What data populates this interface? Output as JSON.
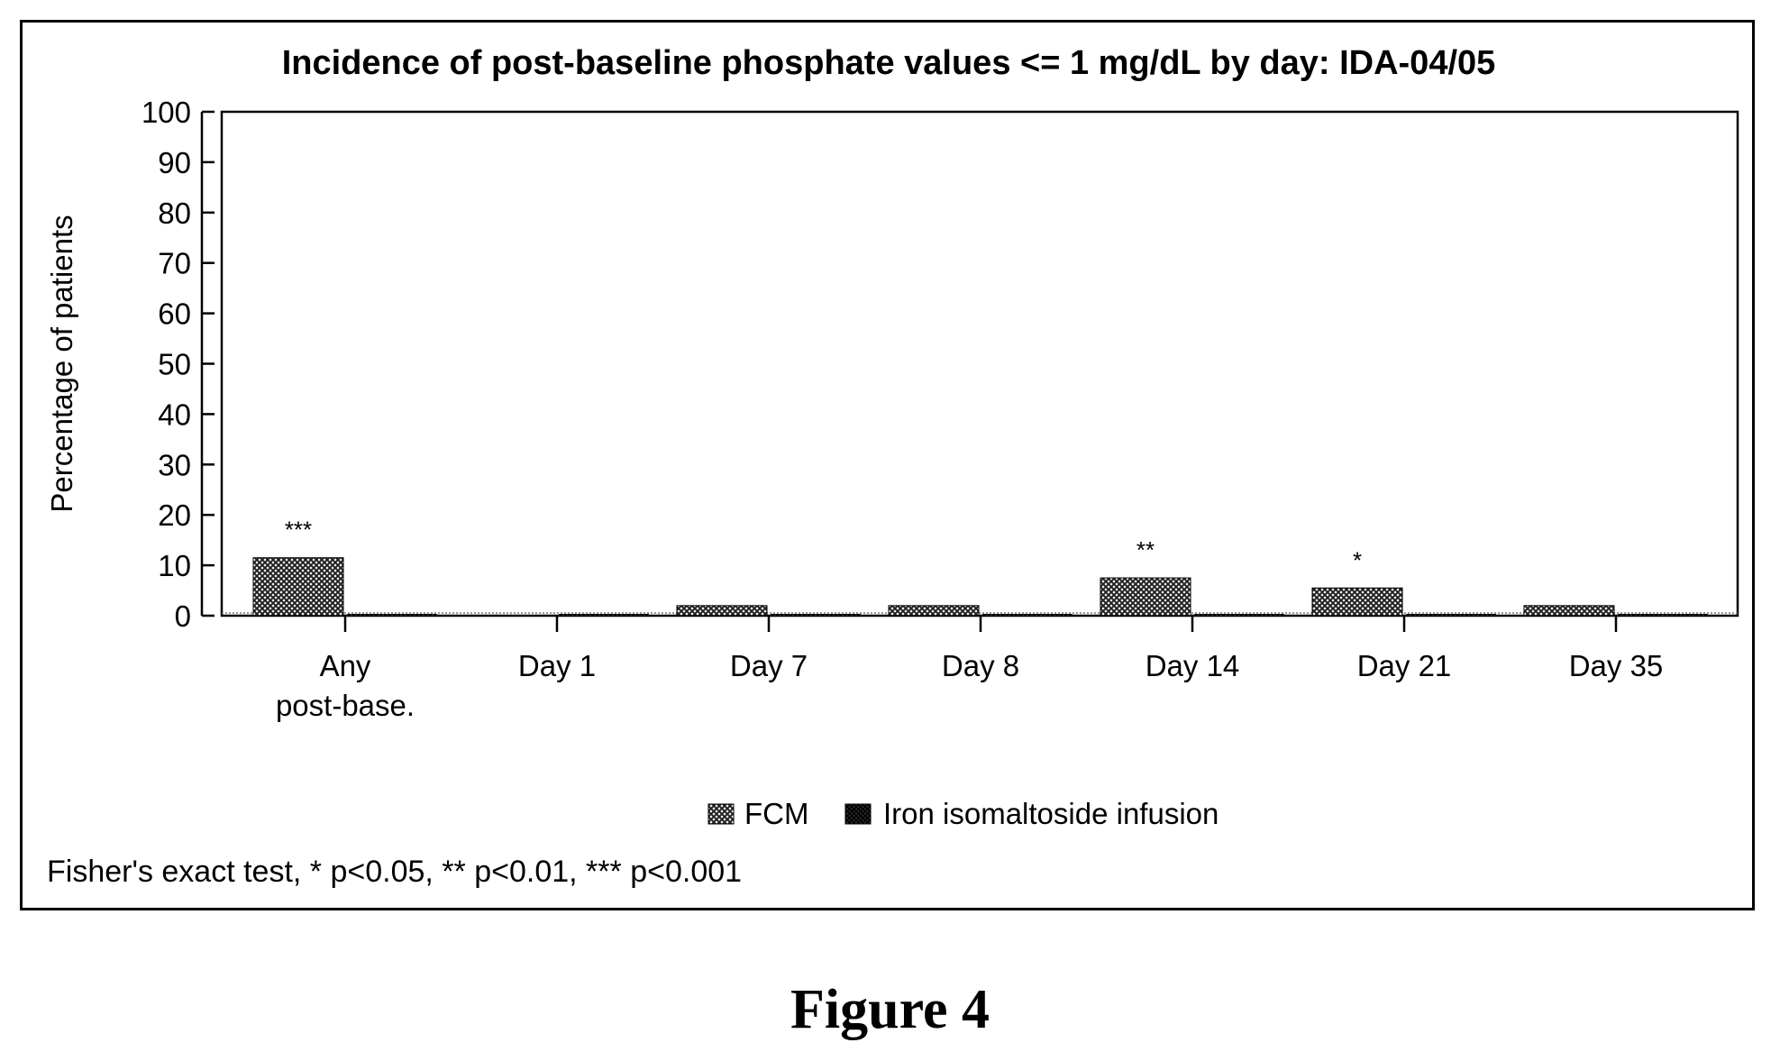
{
  "footnote": "Fisher's exact test, * p<0.05, ** p<0.01, *** p<0.001",
  "caption": "Figure 4",
  "chart_data": {
    "type": "bar",
    "title": "Incidence of post-baseline phosphate values <= 1 mg/dL by day: IDA-04/05",
    "xlabel": "",
    "ylabel": "Percentage of patients",
    "ylim": [
      0,
      100
    ],
    "yticks": [
      0,
      10,
      20,
      30,
      40,
      50,
      60,
      70,
      80,
      90,
      100
    ],
    "categories": [
      [
        "Any",
        "post-base."
      ],
      [
        "Day 1"
      ],
      [
        "Day 7"
      ],
      [
        "Day 8"
      ],
      [
        "Day 14"
      ],
      [
        "Day 21"
      ],
      [
        "Day 35"
      ]
    ],
    "series": [
      {
        "name": "FCM",
        "values": [
          11.5,
          0,
          2,
          2,
          7.5,
          5.5,
          2
        ]
      },
      {
        "name": "Iron isomaltoside infusion",
        "values": [
          0,
          0,
          0,
          0,
          0,
          0,
          0
        ]
      }
    ],
    "annotations": [
      "***",
      "",
      "",
      "",
      "**",
      "*",
      ""
    ],
    "legend_position": "bottom-center",
    "grid": false,
    "colors": {
      "fcm": "#555555",
      "iron": "#222222"
    }
  }
}
